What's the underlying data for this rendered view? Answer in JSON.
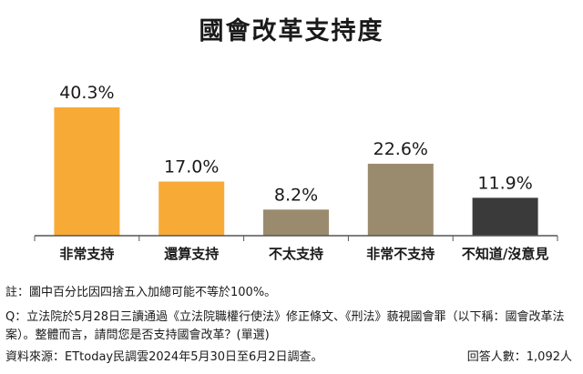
{
  "chart_data": {
    "type": "bar",
    "title": "國會改革支持度",
    "categories": [
      "非常支持",
      "還算支持",
      "不太支持",
      "非常不支持",
      "不知道/沒意見"
    ],
    "values": [
      40.3,
      17.0,
      8.2,
      22.6,
      11.9
    ],
    "value_labels": [
      "40.3%",
      "17.0%",
      "8.2%",
      "22.6%",
      "11.9%"
    ],
    "unit": "%",
    "colors": [
      "#F8AA37",
      "#F8AA37",
      "#9B8B6E",
      "#9B8B6E",
      "#3A3A3A"
    ],
    "ylim": [
      0,
      40.3
    ],
    "grid": false,
    "legend": "none"
  },
  "footer": {
    "note": "註：圖中百分比因四捨五入加總可能不等於100%。",
    "question": "Q：立法院於5月28日三讀通過《立法院職權行使法》修正條文、《刑法》藐視國會罪（以下稱：國會改革法案）。整體而言，請問您是否支持國會改革？(單選)",
    "source": "資料來源：ETtoday民調雲2024年5月30日至6月2日調查。",
    "respondents": "回答人數：1,092人"
  }
}
